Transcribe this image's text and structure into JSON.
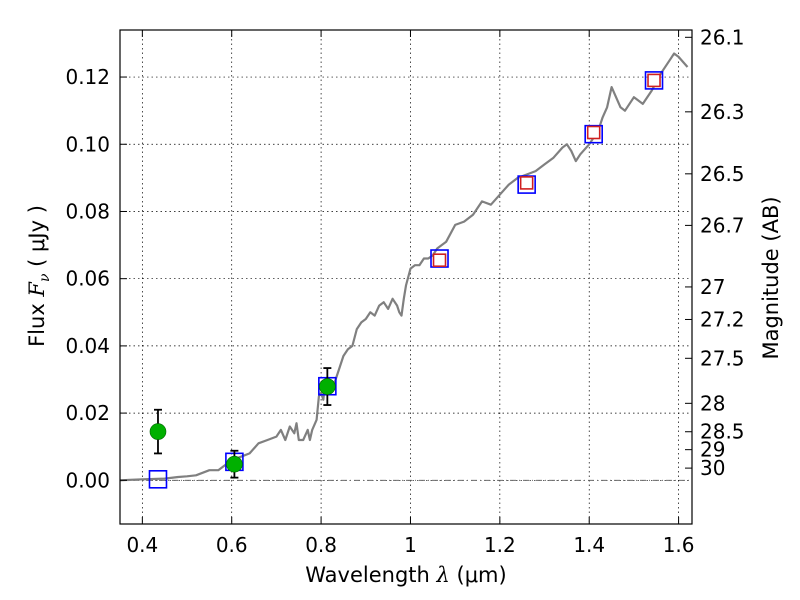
{
  "chart_data": {
    "type": "scatter",
    "xlabel": "Wavelength  λ (μm)",
    "ylabel": "Flux  Fν  ( μJy )",
    "ylabel_parts": {
      "prefix": "Flux ",
      "symbol": "F",
      "subscript": "ν",
      "unit": " ( μJy )"
    },
    "xlabel_parts": {
      "prefix": "Wavelength ",
      "symbol": "λ",
      "unit": " (μm)"
    },
    "ylabel_right": "Magnitude (AB)",
    "xlim": [
      0.35,
      1.63
    ],
    "ylim": [
      -0.013,
      0.134
    ],
    "grid": true,
    "x_ticks": [
      {
        "value": 0.4,
        "label": "0.4"
      },
      {
        "value": 0.6,
        "label": "0.6"
      },
      {
        "value": 0.8,
        "label": "0.8"
      },
      {
        "value": 1.0,
        "label": "1"
      },
      {
        "value": 1.2,
        "label": "1.2"
      },
      {
        "value": 1.4,
        "label": "1.4"
      },
      {
        "value": 1.6,
        "label": "1.6"
      }
    ],
    "y_ticks": [
      {
        "value": 0.0,
        "label": "0.00"
      },
      {
        "value": 0.02,
        "label": "0.02"
      },
      {
        "value": 0.04,
        "label": "0.04"
      },
      {
        "value": 0.06,
        "label": "0.06"
      },
      {
        "value": 0.08,
        "label": "0.08"
      },
      {
        "value": 0.1,
        "label": "0.10"
      },
      {
        "value": 0.12,
        "label": "0.12"
      }
    ],
    "mag_ticks": [
      {
        "mag": 26.1,
        "label": "26.1"
      },
      {
        "mag": 26.3,
        "label": "26.3"
      },
      {
        "mag": 26.5,
        "label": "26.5"
      },
      {
        "mag": 26.7,
        "label": "26.7"
      },
      {
        "mag": 27.0,
        "label": "27"
      },
      {
        "mag": 27.2,
        "label": "27.2"
      },
      {
        "mag": 27.5,
        "label": "27.5"
      },
      {
        "mag": 28.0,
        "label": "28"
      },
      {
        "mag": 28.5,
        "label": "28.5"
      },
      {
        "mag": 29.0,
        "label": "29"
      },
      {
        "mag": 30.0,
        "label": "30"
      }
    ],
    "series": [
      {
        "name": "model-spectrum",
        "kind": "line",
        "color": "#808080",
        "x": [
          0.35,
          0.4,
          0.45,
          0.48,
          0.5,
          0.52,
          0.55,
          0.57,
          0.6,
          0.62,
          0.64,
          0.66,
          0.68,
          0.7,
          0.71,
          0.72,
          0.73,
          0.74,
          0.745,
          0.75,
          0.76,
          0.77,
          0.775,
          0.78,
          0.79,
          0.795,
          0.8,
          0.805,
          0.81,
          0.815,
          0.82,
          0.83,
          0.84,
          0.85,
          0.86,
          0.87,
          0.88,
          0.89,
          0.9,
          0.91,
          0.92,
          0.93,
          0.94,
          0.95,
          0.96,
          0.97,
          0.975,
          0.98,
          0.985,
          0.99,
          1.0,
          1.01,
          1.02,
          1.03,
          1.04,
          1.05,
          1.06,
          1.08,
          1.1,
          1.12,
          1.14,
          1.16,
          1.18,
          1.2,
          1.22,
          1.24,
          1.26,
          1.28,
          1.3,
          1.32,
          1.34,
          1.35,
          1.36,
          1.37,
          1.38,
          1.4,
          1.42,
          1.43,
          1.44,
          1.45,
          1.47,
          1.48,
          1.5,
          1.52,
          1.54,
          1.56,
          1.58,
          1.59,
          1.6,
          1.62
        ],
        "y": [
          0.0,
          0.0003,
          0.0005,
          0.001,
          0.0012,
          0.0015,
          0.003,
          0.003,
          0.006,
          0.007,
          0.008,
          0.011,
          0.012,
          0.013,
          0.015,
          0.012,
          0.016,
          0.014,
          0.017,
          0.012,
          0.012,
          0.015,
          0.012,
          0.015,
          0.018,
          0.025,
          0.026,
          0.024,
          0.03,
          0.027,
          0.028,
          0.029,
          0.033,
          0.037,
          0.039,
          0.04,
          0.045,
          0.047,
          0.048,
          0.05,
          0.049,
          0.052,
          0.053,
          0.051,
          0.054,
          0.052,
          0.05,
          0.049,
          0.054,
          0.058,
          0.063,
          0.064,
          0.064,
          0.066,
          0.066,
          0.067,
          0.069,
          0.071,
          0.076,
          0.077,
          0.079,
          0.083,
          0.082,
          0.085,
          0.088,
          0.09,
          0.091,
          0.092,
          0.094,
          0.096,
          0.099,
          0.1,
          0.098,
          0.095,
          0.097,
          0.1,
          0.104,
          0.108,
          0.111,
          0.117,
          0.111,
          0.11,
          0.114,
          0.112,
          0.116,
          0.121,
          0.125,
          0.127,
          0.126,
          0.123
        ]
      },
      {
        "name": "model-bandpass-fluxes",
        "kind": "marker-square-blue",
        "x": [
          0.435,
          0.606,
          0.814,
          1.065,
          1.26,
          1.41,
          1.545
        ],
        "y": [
          0.0003,
          0.0055,
          0.028,
          0.066,
          0.088,
          0.103,
          0.119
        ]
      },
      {
        "name": "hst-photometry",
        "kind": "marker-circle-green",
        "x": [
          0.435,
          0.606,
          0.814
        ],
        "y": [
          0.0145,
          0.0048,
          0.0279
        ],
        "yerr": [
          0.0065,
          0.004,
          0.0055
        ]
      },
      {
        "name": "nir-photometry",
        "kind": "marker-square-red",
        "x": [
          1.065,
          1.26,
          1.41,
          1.545
        ],
        "y": [
          0.0655,
          0.0885,
          0.1035,
          0.119
        ]
      }
    ]
  }
}
